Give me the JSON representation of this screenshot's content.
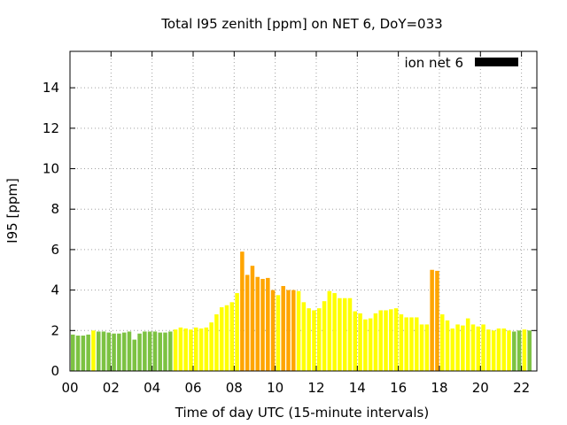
{
  "chart_data": {
    "type": "bar",
    "title": "Total I95 zenith [ppm] on NET 6, DoY=033",
    "xlabel": "Time of day UTC (15-minute intervals)",
    "ylabel": "I95 [ppm]",
    "xlim": [
      0,
      22.75
    ],
    "ylim": [
      0,
      15.8
    ],
    "x_ticks": [
      "00",
      "02",
      "04",
      "06",
      "08",
      "10",
      "12",
      "14",
      "16",
      "18",
      "20",
      "22"
    ],
    "y_ticks": [
      "0",
      "2",
      "4",
      "6",
      "8",
      "10",
      "12",
      "14"
    ],
    "grid": true,
    "legend": {
      "position": "top-right",
      "entries": [
        {
          "name": "ion net 6",
          "color": "#000000"
        }
      ]
    },
    "colors": {
      "low": "#7cc242",
      "medium": "#ffff00",
      "high": "#ffa500"
    },
    "bar_interval_hours": 0.25,
    "series": [
      {
        "name": "ion net 6",
        "values": [
          1.8,
          1.75,
          1.75,
          1.8,
          2.0,
          1.95,
          1.95,
          1.9,
          1.85,
          1.85,
          1.9,
          1.95,
          1.55,
          1.85,
          1.95,
          1.95,
          1.95,
          1.9,
          1.9,
          1.95,
          2.05,
          2.15,
          2.1,
          2.05,
          2.15,
          2.1,
          2.15,
          2.4,
          2.8,
          3.15,
          3.25,
          3.4,
          3.85,
          5.9,
          4.75,
          5.2,
          4.65,
          4.55,
          4.6,
          4.0,
          3.75,
          4.2,
          4.0,
          4.0,
          3.95,
          3.4,
          3.1,
          3.0,
          3.1,
          3.45,
          3.95,
          3.85,
          3.6,
          3.6,
          3.6,
          2.95,
          2.85,
          2.55,
          2.6,
          2.85,
          3.0,
          3.0,
          3.05,
          3.1,
          2.8,
          2.65,
          2.65,
          2.65,
          2.3,
          2.3,
          5.0,
          4.95,
          2.8,
          2.5,
          2.1,
          2.3,
          2.25,
          2.6,
          2.3,
          2.2,
          2.3,
          2.05,
          2.0,
          2.1,
          2.1,
          2.0,
          1.95,
          2.0,
          2.05,
          2.0
        ]
      }
    ]
  }
}
